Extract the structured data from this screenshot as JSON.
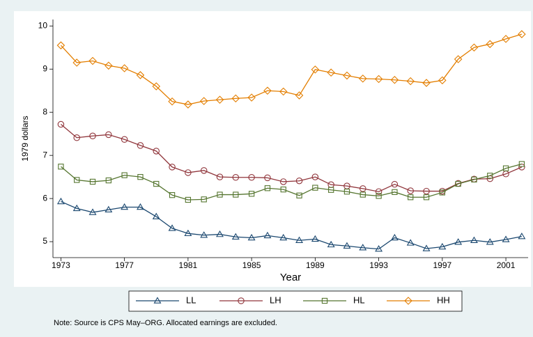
{
  "chart_data": {
    "type": "line",
    "x_label": "Year",
    "y_label": "1979 dollars",
    "note": "Note: Source is CPS May–ORG. Allocated earnings are excluded.",
    "x": [
      1973,
      1974,
      1975,
      1976,
      1977,
      1978,
      1979,
      1980,
      1981,
      1982,
      1983,
      1984,
      1985,
      1986,
      1987,
      1988,
      1989,
      1990,
      1991,
      1992,
      1993,
      1994,
      1995,
      1996,
      1997,
      1998,
      1999,
      2000,
      2001,
      2002
    ],
    "xlim": [
      1972.5,
      2002.4
    ],
    "xticks": [
      1973,
      1977,
      1981,
      1985,
      1989,
      1993,
      1997,
      2001
    ],
    "ylim": [
      4.63,
      10.15
    ],
    "yticks": [
      5,
      6,
      7,
      8,
      9,
      10
    ],
    "series": [
      {
        "name": "LL",
        "color": "#1a476f",
        "marker": "triangle",
        "values": [
          5.93,
          5.77,
          5.68,
          5.74,
          5.8,
          5.8,
          5.58,
          5.31,
          5.19,
          5.15,
          5.17,
          5.11,
          5.09,
          5.14,
          5.09,
          5.03,
          5.06,
          4.93,
          4.9,
          4.86,
          4.83,
          5.09,
          4.97,
          4.84,
          4.88,
          4.99,
          5.03,
          4.99,
          5.05,
          5.12
        ]
      },
      {
        "name": "LH",
        "color": "#90353b",
        "marker": "circle",
        "values": [
          7.72,
          7.41,
          7.45,
          7.48,
          7.37,
          7.23,
          7.1,
          6.73,
          6.6,
          6.65,
          6.5,
          6.49,
          6.49,
          6.48,
          6.39,
          6.41,
          6.5,
          6.32,
          6.29,
          6.23,
          6.16,
          6.33,
          6.18,
          6.17,
          6.17,
          6.35,
          6.45,
          6.46,
          6.57,
          6.73
        ]
      },
      {
        "name": "HL",
        "color": "#55752f",
        "marker": "square",
        "values": [
          6.74,
          6.43,
          6.39,
          6.42,
          6.54,
          6.5,
          6.34,
          6.08,
          5.97,
          5.98,
          6.09,
          6.09,
          6.11,
          6.24,
          6.21,
          6.07,
          6.25,
          6.2,
          6.16,
          6.09,
          6.06,
          6.15,
          6.03,
          6.03,
          6.14,
          6.34,
          6.44,
          6.53,
          6.7,
          6.8
        ]
      },
      {
        "name": "HH",
        "color": "#e37e00",
        "marker": "diamond",
        "values": [
          9.55,
          9.15,
          9.19,
          9.08,
          9.02,
          8.86,
          8.6,
          8.25,
          8.18,
          8.26,
          8.29,
          8.32,
          8.34,
          8.5,
          8.48,
          8.39,
          8.99,
          8.92,
          8.85,
          8.78,
          8.77,
          8.75,
          8.72,
          8.68,
          8.74,
          9.23,
          9.5,
          9.58,
          9.7,
          9.81
        ]
      }
    ]
  }
}
